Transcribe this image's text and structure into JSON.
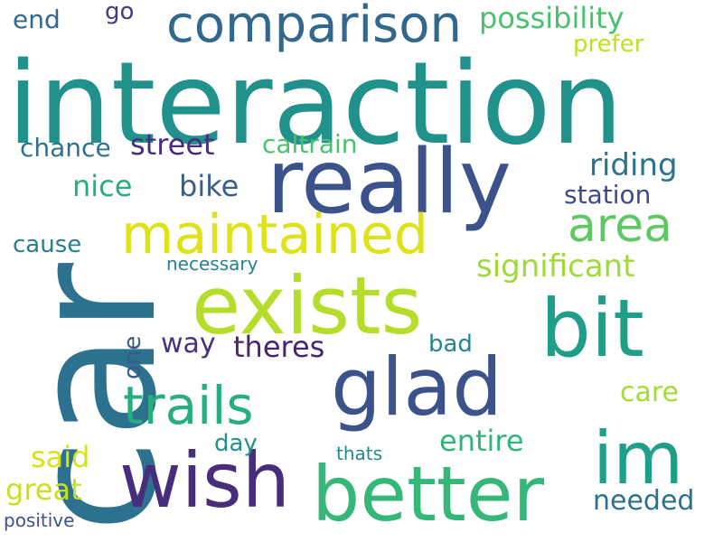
{
  "words": [
    {
      "key": "car",
      "text": "car",
      "color": "#2c728e"
    },
    {
      "key": "interaction",
      "text": "interaction",
      "color": "#21918c"
    },
    {
      "key": "really",
      "text": "really",
      "color": "#3b528b"
    },
    {
      "key": "exists",
      "text": "exists",
      "color": "#b5de2b"
    },
    {
      "key": "better",
      "text": "better",
      "color": "#35b779"
    },
    {
      "key": "wish",
      "text": "wish",
      "color": "#472d7b"
    },
    {
      "key": "glad",
      "text": "glad",
      "color": "#3b528b"
    },
    {
      "key": "bit",
      "text": "bit",
      "color": "#1f9e89"
    },
    {
      "key": "im",
      "text": "im",
      "color": "#1f9e89"
    },
    {
      "key": "maintained",
      "text": "maintained",
      "color": "#dde318"
    },
    {
      "key": "comparison",
      "text": "comparison",
      "color": "#31688e"
    },
    {
      "key": "trails",
      "text": "trails",
      "color": "#27ad81"
    },
    {
      "key": "area",
      "text": "area",
      "color": "#5ec962"
    },
    {
      "key": "significant",
      "text": "significant",
      "color": "#a0da39"
    },
    {
      "key": "possibility",
      "text": "possibility",
      "color": "#4ac16d"
    },
    {
      "key": "riding",
      "text": "riding",
      "color": "#2c728e"
    },
    {
      "key": "street",
      "text": "street",
      "color": "#472d7b"
    },
    {
      "key": "theres",
      "text": "theres",
      "color": "#482475"
    },
    {
      "key": "entire",
      "text": "entire",
      "color": "#2fb47c"
    },
    {
      "key": "nice",
      "text": "nice",
      "color": "#27ad81"
    },
    {
      "key": "bike",
      "text": "bike",
      "color": "#355f8d"
    },
    {
      "key": "great",
      "text": "great",
      "color": "#c8e020"
    },
    {
      "key": "needed",
      "text": "needed",
      "color": "#2c728e"
    },
    {
      "key": "way",
      "text": "way",
      "color": "#46327e"
    },
    {
      "key": "care",
      "text": "care",
      "color": "#a5db36"
    },
    {
      "key": "said",
      "text": "said",
      "color": "#d8e219"
    },
    {
      "key": "one",
      "text": "one",
      "color": "#38598c"
    },
    {
      "key": "station",
      "text": "station",
      "color": "#3e4989"
    },
    {
      "key": "caltrain",
      "text": "caltrain",
      "color": "#4ac16d"
    },
    {
      "key": "chance",
      "text": "chance",
      "color": "#2c728e"
    },
    {
      "key": "end",
      "text": "end",
      "color": "#31688e"
    },
    {
      "key": "go",
      "text": "go",
      "color": "#443a83"
    },
    {
      "key": "prefer",
      "text": "prefer",
      "color": "#c0df25"
    },
    {
      "key": "cause",
      "text": "cause",
      "color": "#287d8e"
    },
    {
      "key": "bad",
      "text": "bad",
      "color": "#25858e"
    },
    {
      "key": "day",
      "text": "day",
      "color": "#21918c"
    },
    {
      "key": "thats",
      "text": "thats",
      "color": "#23898e"
    },
    {
      "key": "necessary",
      "text": "necessary",
      "color": "#26828e"
    },
    {
      "key": "positive",
      "text": "positive",
      "color": "#3b528b"
    }
  ]
}
